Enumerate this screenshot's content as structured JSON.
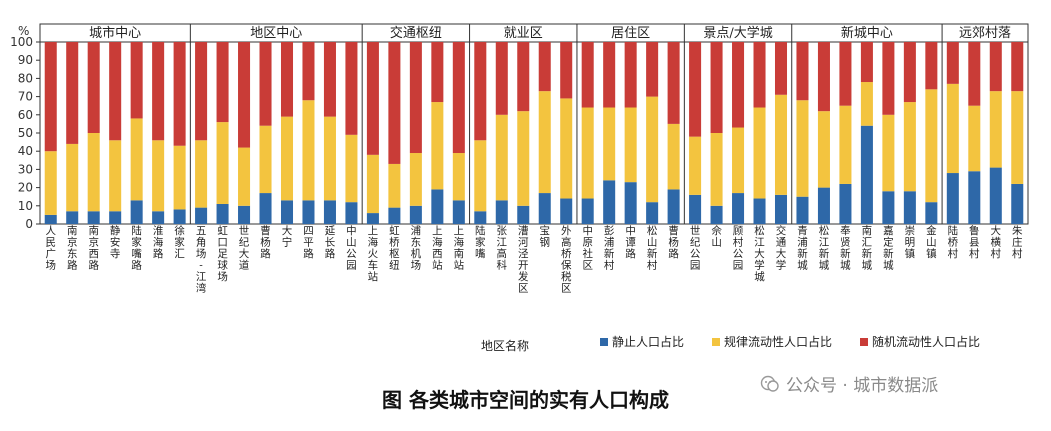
{
  "chart_data": {
    "type": "bar",
    "stacked": true,
    "title": "",
    "xlabel": "地区名称",
    "ylabel": "%",
    "ylim": [
      0,
      100
    ],
    "yticks": [
      0,
      10,
      20,
      30,
      40,
      50,
      60,
      70,
      80,
      90,
      100
    ],
    "grid": false,
    "legend_position": "bottom-right",
    "groups": [
      {
        "name": "城市中心",
        "categories": [
          "人民广场",
          "南京东路",
          "南京西路",
          "静安寺",
          "陆家嘴路",
          "淮海路",
          "徐家汇"
        ]
      },
      {
        "name": "地区中心",
        "categories": [
          "五角场-江湾",
          "虹口足球场",
          "世纪大道",
          "曹杨路",
          "大宁",
          "四平路",
          "延长路",
          "中山公园"
        ]
      },
      {
        "name": "交通枢纽",
        "categories": [
          "上海火车站",
          "虹桥枢纽",
          "浦东机场",
          "上海西站",
          "上海南站"
        ]
      },
      {
        "name": "就业区",
        "categories": [
          "陆家嘴",
          "张江高科",
          "漕河泾开发区",
          "宝钢",
          "外高桥保税区"
        ]
      },
      {
        "name": "居住区",
        "categories": [
          "中原社区",
          "彭浦新村",
          "中谭路",
          "松山新村",
          "曹杨路"
        ]
      },
      {
        "name": "景点/大学城",
        "categories": [
          "世纪公园",
          "佘山",
          "顾村公园",
          "松江大学城",
          "交通大学"
        ]
      },
      {
        "name": "新城中心",
        "categories": [
          "青浦新城",
          "松江新城",
          "奉贤新城",
          "南汇新城",
          "嘉定新城",
          "崇明镇",
          "金山镇"
        ]
      },
      {
        "name": "远郊村落",
        "categories": [
          "陆桥村",
          "鲁县村",
          "大横村",
          "朱庄村"
        ]
      }
    ],
    "series": [
      {
        "name": "静止人口占比",
        "color": "#2e68a8",
        "values": [
          5,
          7,
          7,
          7,
          13,
          7,
          8,
          9,
          11,
          10,
          17,
          13,
          13,
          13,
          12,
          6,
          9,
          10,
          19,
          13,
          7,
          13,
          10,
          17,
          14,
          14,
          24,
          23,
          12,
          19,
          16,
          10,
          17,
          14,
          16,
          15,
          20,
          22,
          54,
          18,
          18,
          12,
          28,
          29,
          31,
          22
        ]
      },
      {
        "name": "规律流动性人口占比",
        "color": "#f3c43f",
        "values": [
          35,
          37,
          43,
          39,
          45,
          39,
          35,
          37,
          45,
          32,
          37,
          46,
          55,
          46,
          37,
          32,
          24,
          29,
          48,
          26,
          39,
          47,
          52,
          56,
          55,
          50,
          40,
          41,
          58,
          36,
          32,
          40,
          36,
          50,
          55,
          53,
          42,
          43,
          24,
          42,
          49,
          62,
          49,
          36,
          42,
          51
        ]
      },
      {
        "name": "随机流动性人口占比",
        "color": "#c93c37",
        "values": [
          60,
          56,
          50,
          54,
          42,
          54,
          57,
          54,
          44,
          58,
          46,
          41,
          32,
          41,
          51,
          62,
          67,
          61,
          33,
          61,
          54,
          40,
          38,
          27,
          31,
          36,
          36,
          36,
          30,
          45,
          52,
          50,
          47,
          36,
          29,
          32,
          38,
          35,
          22,
          40,
          33,
          26,
          23,
          35,
          27,
          27
        ]
      }
    ]
  },
  "caption": "图  各类城市空间的实有人口构成",
  "watermark": {
    "text": "公众号 · 城市数据派",
    "icon": "wechat-icon"
  }
}
